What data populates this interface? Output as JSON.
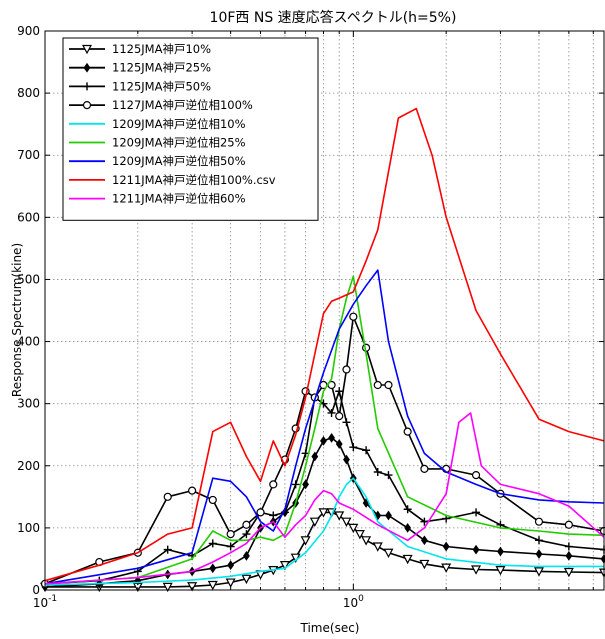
{
  "chart_data": {
    "type": "line",
    "title": "10F西 NS 速度応答スペクトル(h=5%)",
    "xlabel": "Time(sec)",
    "ylabel": "Response Spectrum(kine)",
    "xscale": "log",
    "xlim": [
      0.1,
      6.5
    ],
    "ylim": [
      0,
      900
    ],
    "yticks": [
      0,
      100,
      200,
      300,
      400,
      500,
      600,
      700,
      800,
      900
    ],
    "xtick_labels": [
      "10^-1",
      "10^0"
    ],
    "grid": true,
    "legend_position": "top-left",
    "series": [
      {
        "name": "1125JMA神戸10%",
        "color": "#000000",
        "marker": "triangle-down",
        "x": [
          0.1,
          0.15,
          0.2,
          0.25,
          0.3,
          0.35,
          0.4,
          0.45,
          0.5,
          0.55,
          0.6,
          0.65,
          0.7,
          0.75,
          0.8,
          0.85,
          0.9,
          0.95,
          1.0,
          1.05,
          1.1,
          1.2,
          1.3,
          1.5,
          1.7,
          2.0,
          2.5,
          3.0,
          4.0,
          5.0,
          6.5
        ],
        "y": [
          5,
          5,
          5,
          5,
          6,
          8,
          12,
          18,
          25,
          32,
          40,
          52,
          80,
          110,
          125,
          125,
          120,
          110,
          100,
          90,
          80,
          70,
          60,
          50,
          42,
          36,
          33,
          32,
          30,
          29,
          28
        ]
      },
      {
        "name": "1125JMA神戸25%",
        "color": "#000000",
        "marker": "diamond",
        "x": [
          0.1,
          0.15,
          0.2,
          0.25,
          0.3,
          0.35,
          0.4,
          0.45,
          0.5,
          0.55,
          0.6,
          0.65,
          0.7,
          0.75,
          0.8,
          0.85,
          0.9,
          0.95,
          1.0,
          1.1,
          1.2,
          1.3,
          1.5,
          1.7,
          2.0,
          2.5,
          3.0,
          4.0,
          5.0,
          6.5
        ],
        "y": [
          5,
          10,
          15,
          25,
          30,
          35,
          40,
          55,
          100,
          110,
          125,
          140,
          170,
          215,
          240,
          245,
          235,
          210,
          180,
          140,
          120,
          120,
          100,
          80,
          70,
          65,
          62,
          58,
          55,
          50
        ]
      },
      {
        "name": "1125JMA神戸50%",
        "color": "#000000",
        "marker": "plus",
        "x": [
          0.1,
          0.15,
          0.2,
          0.25,
          0.3,
          0.35,
          0.4,
          0.45,
          0.5,
          0.55,
          0.6,
          0.65,
          0.7,
          0.75,
          0.8,
          0.85,
          0.9,
          0.95,
          1.0,
          1.1,
          1.2,
          1.3,
          1.5,
          1.7,
          2.0,
          2.5,
          3.0,
          4.0,
          5.0,
          6.5
        ],
        "y": [
          10,
          15,
          30,
          65,
          55,
          75,
          70,
          90,
          125,
          120,
          125,
          170,
          220,
          310,
          300,
          285,
          320,
          270,
          230,
          225,
          190,
          185,
          130,
          110,
          115,
          125,
          105,
          80,
          70,
          65
        ]
      },
      {
        "name": "1127JMA神戸逆位相100%",
        "color": "#000000",
        "marker": "circle",
        "x": [
          0.1,
          0.15,
          0.2,
          0.25,
          0.3,
          0.35,
          0.4,
          0.45,
          0.5,
          0.55,
          0.6,
          0.65,
          0.7,
          0.75,
          0.8,
          0.85,
          0.9,
          0.95,
          1.0,
          1.1,
          1.2,
          1.3,
          1.5,
          1.7,
          2.0,
          2.5,
          3.0,
          4.0,
          5.0,
          6.5
        ],
        "y": [
          10,
          45,
          60,
          150,
          160,
          145,
          90,
          105,
          125,
          170,
          210,
          260,
          320,
          310,
          330,
          330,
          280,
          355,
          440,
          390,
          330,
          330,
          255,
          195,
          195,
          185,
          155,
          110,
          105,
          95
        ]
      },
      {
        "name": "1209JMA神戸逆位相10%",
        "color": "#00e5ee",
        "marker": "none",
        "x": [
          0.1,
          0.2,
          0.3,
          0.4,
          0.5,
          0.6,
          0.7,
          0.8,
          0.85,
          0.9,
          0.95,
          1.0,
          1.1,
          1.2,
          1.5,
          2.0,
          3.0,
          4.0,
          5.0,
          6.5
        ],
        "y": [
          8,
          12,
          16,
          22,
          30,
          35,
          60,
          95,
          120,
          150,
          170,
          180,
          150,
          110,
          70,
          50,
          40,
          38,
          38,
          38
        ]
      },
      {
        "name": "1209JMA神戸逆位相25%",
        "color": "#22cc00",
        "marker": "none",
        "x": [
          0.1,
          0.2,
          0.3,
          0.35,
          0.4,
          0.45,
          0.5,
          0.55,
          0.6,
          0.65,
          0.7,
          0.75,
          0.8,
          0.85,
          0.9,
          0.95,
          1.0,
          1.1,
          1.2,
          1.5,
          2.0,
          3.0,
          4.0,
          5.0,
          6.5
        ],
        "y": [
          10,
          20,
          50,
          95,
          80,
          80,
          85,
          80,
          90,
          140,
          200,
          260,
          320,
          340,
          420,
          470,
          505,
          380,
          260,
          150,
          120,
          100,
          95,
          90,
          88
        ]
      },
      {
        "name": "1209JMA神戸逆位相50%",
        "color": "#0000ff",
        "marker": "none",
        "x": [
          0.1,
          0.2,
          0.3,
          0.35,
          0.4,
          0.45,
          0.5,
          0.55,
          0.6,
          0.65,
          0.7,
          0.8,
          0.9,
          1.0,
          1.1,
          1.2,
          1.3,
          1.5,
          1.7,
          2.0,
          2.5,
          3.0,
          4.0,
          5.0,
          6.5
        ],
        "y": [
          10,
          35,
          60,
          180,
          175,
          150,
          110,
          95,
          130,
          200,
          260,
          350,
          420,
          460,
          490,
          515,
          400,
          280,
          220,
          190,
          170,
          155,
          145,
          142,
          140
        ]
      },
      {
        "name": "1211JMA神戸逆位相100%.csv",
        "color": "#ff0000",
        "marker": "none",
        "x": [
          0.1,
          0.15,
          0.2,
          0.25,
          0.3,
          0.35,
          0.4,
          0.45,
          0.5,
          0.55,
          0.6,
          0.65,
          0.7,
          0.75,
          0.8,
          0.85,
          0.9,
          1.0,
          1.1,
          1.2,
          1.4,
          1.6,
          1.8,
          2.0,
          2.5,
          3.0,
          4.0,
          5.0,
          6.5
        ],
        "y": [
          15,
          40,
          60,
          90,
          100,
          255,
          270,
          215,
          175,
          240,
          200,
          250,
          310,
          380,
          445,
          465,
          470,
          480,
          530,
          580,
          760,
          775,
          700,
          600,
          450,
          380,
          275,
          255,
          240
        ]
      },
      {
        "name": "1211JMA神戸逆位相60%",
        "color": "#ff00ff",
        "marker": "none",
        "x": [
          0.1,
          0.2,
          0.3,
          0.35,
          0.4,
          0.45,
          0.5,
          0.55,
          0.6,
          0.65,
          0.7,
          0.75,
          0.8,
          0.85,
          0.9,
          1.0,
          1.2,
          1.5,
          1.7,
          2.0,
          2.2,
          2.4,
          2.6,
          3.0,
          4.0,
          5.0,
          6.5
        ],
        "y": [
          10,
          20,
          30,
          45,
          60,
          75,
          100,
          110,
          85,
          105,
          120,
          145,
          160,
          155,
          140,
          130,
          105,
          80,
          100,
          155,
          270,
          285,
          200,
          170,
          155,
          135,
          85
        ]
      }
    ]
  }
}
